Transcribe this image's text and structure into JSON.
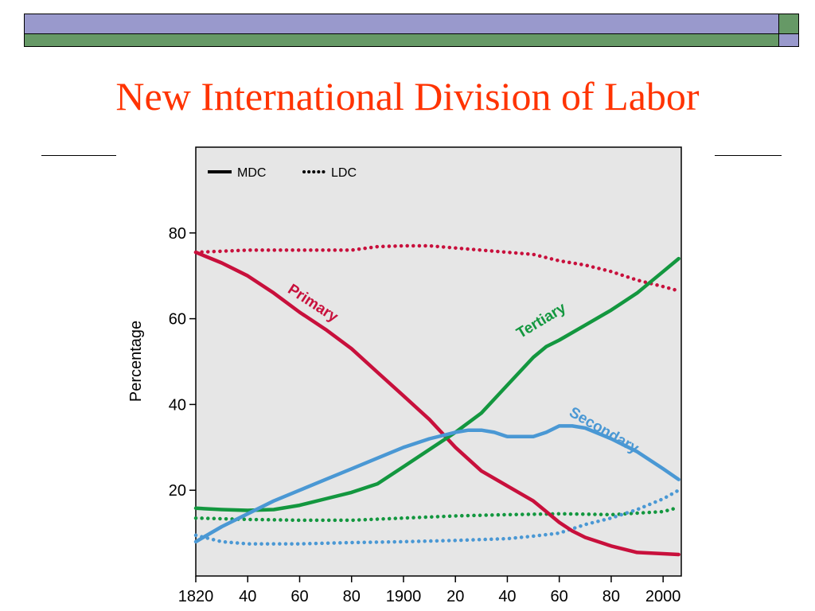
{
  "slide": {
    "title": "New International Division of Labor",
    "colors": {
      "title": "#ff3300",
      "bar_lavender": "#9999cc",
      "bar_green": "#669966"
    }
  },
  "chart_data": {
    "type": "line",
    "ylabel": "Percentage",
    "xlabel": "",
    "xlim": [
      1820,
      2007
    ],
    "ylim": [
      0,
      100
    ],
    "x_ticks": [
      1820,
      1840,
      1860,
      1880,
      1900,
      1920,
      1940,
      1960,
      1980,
      2000
    ],
    "x_tick_labels": [
      "1820",
      "40",
      "60",
      "80",
      "1900",
      "20",
      "40",
      "60",
      "80",
      "2000"
    ],
    "y_ticks": [
      20,
      40,
      60,
      80
    ],
    "y_tick_labels": [
      "20",
      "40",
      "60",
      "80"
    ],
    "legend": {
      "placement": "top-left",
      "entries": [
        {
          "label": "MDC",
          "style": "solid"
        },
        {
          "label": "LDC",
          "style": "dotted"
        }
      ]
    },
    "background": "#e6e6e6",
    "grid": false,
    "series": [
      {
        "name": "Primary",
        "group": "MDC",
        "style": "solid",
        "color": "#c8103c",
        "x": [
          1820,
          1830,
          1840,
          1850,
          1860,
          1870,
          1880,
          1890,
          1900,
          1910,
          1920,
          1930,
          1940,
          1950,
          1955,
          1960,
          1965,
          1970,
          1980,
          1990,
          2000,
          2006
        ],
        "y": [
          75.5,
          73,
          70,
          66,
          61.5,
          57.5,
          53,
          47.5,
          42,
          36.5,
          30,
          24.5,
          21,
          17.5,
          15,
          12.5,
          10.5,
          9,
          7,
          5.5,
          5.2,
          5
        ]
      },
      {
        "name": "Secondary",
        "group": "MDC",
        "style": "solid",
        "color": "#4a98d4",
        "x": [
          1820,
          1830,
          1840,
          1850,
          1860,
          1870,
          1880,
          1890,
          1900,
          1910,
          1920,
          1925,
          1930,
          1935,
          1940,
          1945,
          1950,
          1955,
          1960,
          1965,
          1970,
          1980,
          1990,
          2000,
          2006
        ],
        "y": [
          8,
          11.5,
          14.5,
          17.5,
          20,
          22.5,
          25,
          27.5,
          30,
          32,
          33.5,
          34,
          34,
          33.5,
          32.5,
          32.5,
          32.5,
          33.5,
          35,
          35,
          34.5,
          32,
          29,
          25,
          22.5
        ]
      },
      {
        "name": "Tertiary",
        "group": "MDC",
        "style": "solid",
        "color": "#13973f",
        "x": [
          1820,
          1830,
          1840,
          1850,
          1860,
          1870,
          1880,
          1885,
          1890,
          1900,
          1910,
          1920,
          1930,
          1940,
          1950,
          1955,
          1960,
          1970,
          1980,
          1990,
          2000,
          2006
        ],
        "y": [
          15.8,
          15.5,
          15.3,
          15.5,
          16.5,
          18,
          19.5,
          20.5,
          21.5,
          25.5,
          29.5,
          33.5,
          38,
          44.5,
          51,
          53.5,
          55,
          58.5,
          62,
          66,
          71,
          74
        ]
      },
      {
        "name": "Primary",
        "group": "LDC",
        "style": "dotted",
        "color": "#c8103c",
        "x": [
          1820,
          1840,
          1860,
          1880,
          1890,
          1900,
          1910,
          1920,
          1940,
          1950,
          1960,
          1970,
          1980,
          1990,
          2000,
          2006
        ],
        "y": [
          75.5,
          76,
          76,
          76,
          76.8,
          77,
          77,
          76.5,
          75.5,
          75,
          73.5,
          72.5,
          71,
          69,
          67.5,
          66.5
        ]
      },
      {
        "name": "Secondary",
        "group": "LDC",
        "style": "dotted",
        "color": "#4a98d4",
        "x": [
          1820,
          1830,
          1840,
          1860,
          1880,
          1900,
          1920,
          1940,
          1950,
          1960,
          1965,
          1970,
          1980,
          1990,
          2000,
          2006
        ],
        "y": [
          9.5,
          8,
          7.5,
          7.5,
          7.8,
          8,
          8.3,
          8.7,
          9.3,
          10,
          11,
          12,
          13.5,
          15.5,
          18,
          20
        ]
      },
      {
        "name": "Tertiary",
        "group": "LDC",
        "style": "dotted",
        "color": "#13973f",
        "x": [
          1820,
          1840,
          1860,
          1880,
          1900,
          1920,
          1940,
          1960,
          1980,
          2000,
          2006
        ],
        "y": [
          13.5,
          13.2,
          13,
          13,
          13.5,
          14,
          14.3,
          14.5,
          14.3,
          15,
          16
        ]
      }
    ],
    "annotations": [
      "Primary",
      "Tertiary",
      "Secondary"
    ]
  }
}
